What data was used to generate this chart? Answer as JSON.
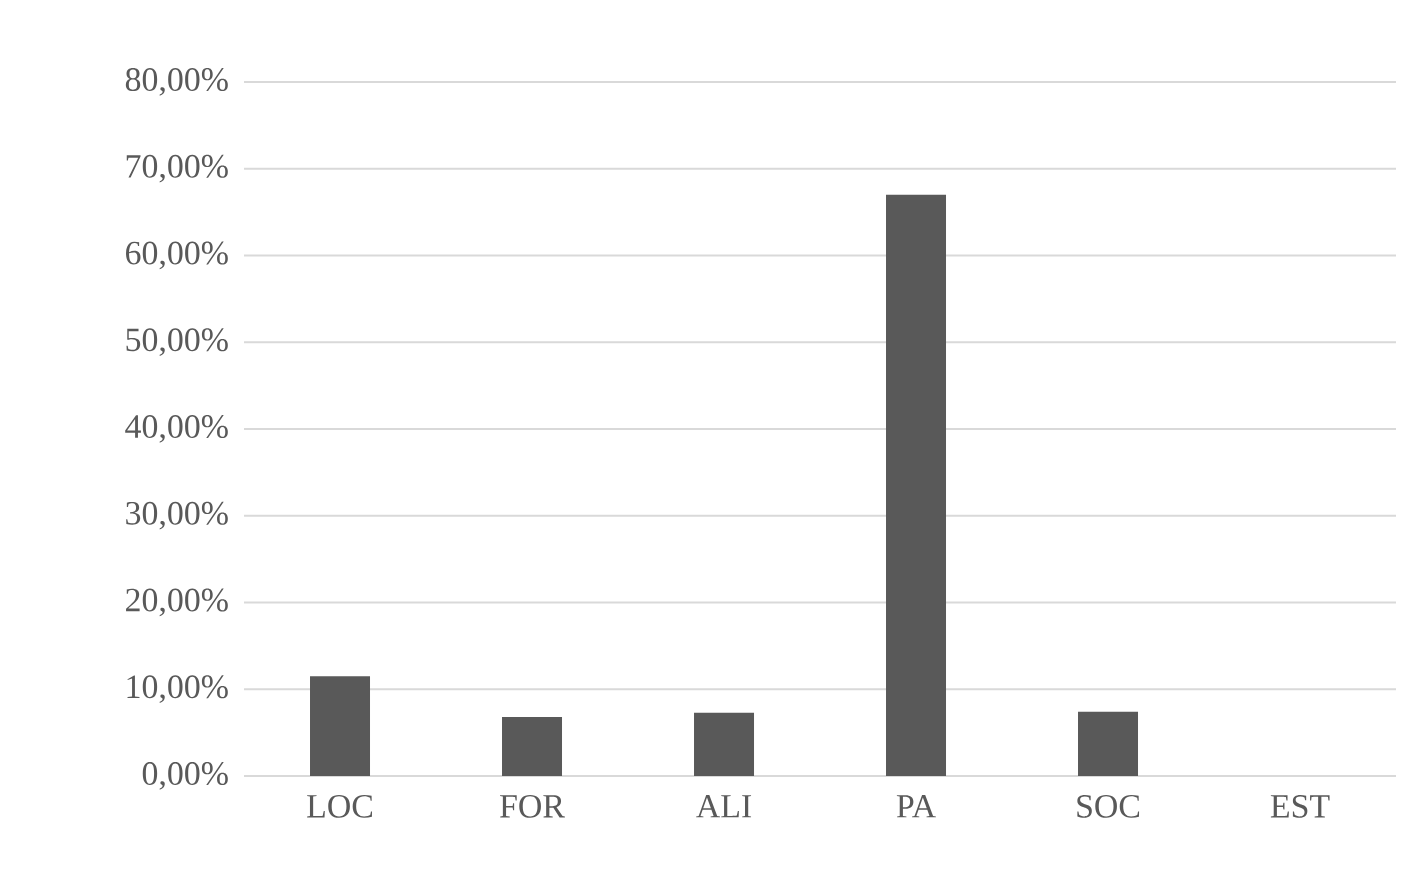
{
  "chart_data": {
    "type": "bar",
    "categories": [
      "LOC",
      "FOR",
      "ALI",
      "PA",
      "SOC",
      "EST"
    ],
    "values": [
      11.5,
      6.8,
      7.3,
      67.0,
      7.4,
      0
    ],
    "color": "#595959",
    "ylim": [
      0,
      80
    ],
    "yticks": [
      {
        "value": 0,
        "label": "0,00%"
      },
      {
        "value": 10,
        "label": "10,00%"
      },
      {
        "value": 20,
        "label": "20,00%"
      },
      {
        "value": 30,
        "label": "30,00%"
      },
      {
        "value": 40,
        "label": "40,00%"
      },
      {
        "value": 50,
        "label": "50,00%"
      },
      {
        "value": 60,
        "label": "60,00%"
      },
      {
        "value": 70,
        "label": "70,00%"
      },
      {
        "value": 80,
        "label": "80,00%"
      }
    ],
    "grid": "y"
  }
}
